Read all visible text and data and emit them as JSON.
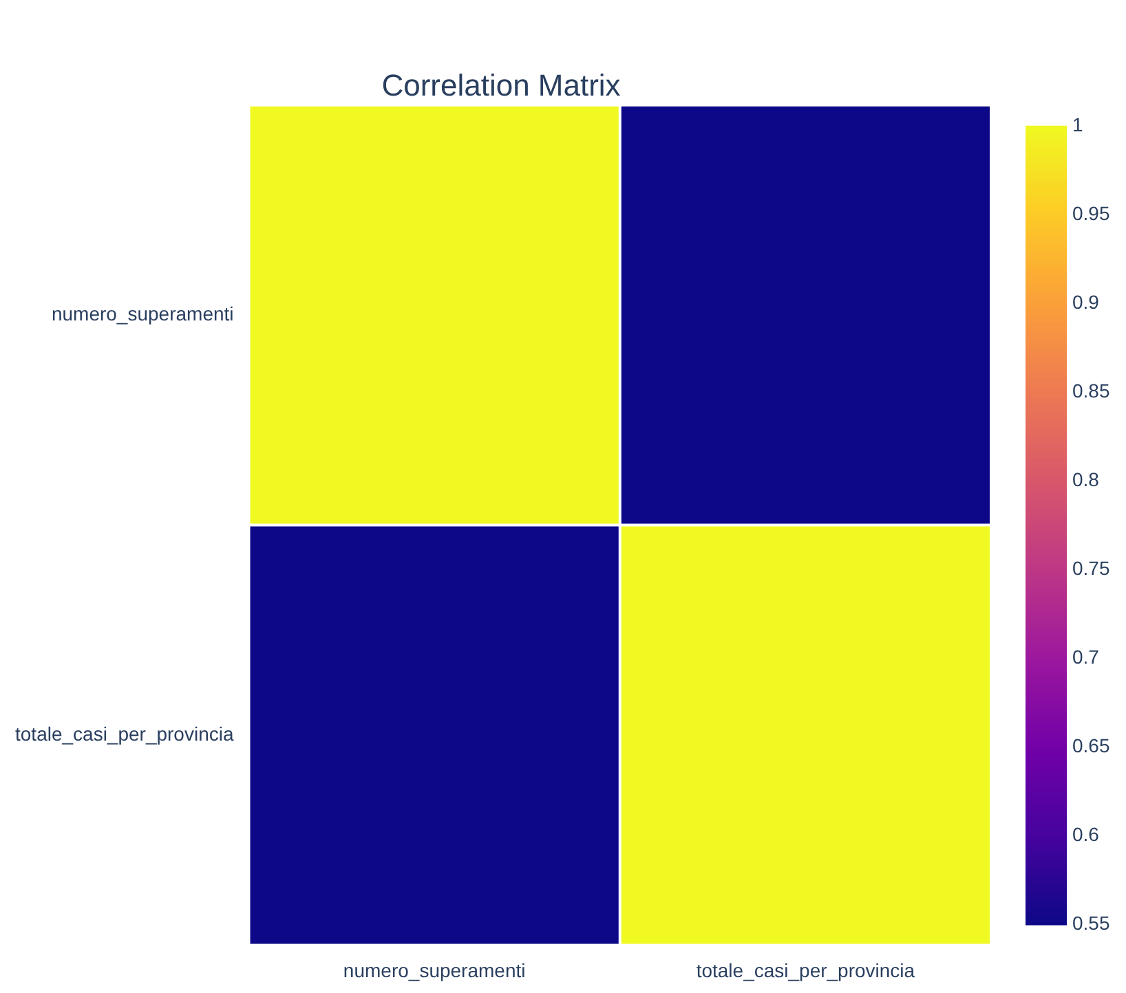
{
  "chart_data": {
    "type": "heatmap",
    "title": "Correlation Matrix",
    "categories": [
      "numero_superamenti",
      "totale_casi_per_provincia"
    ],
    "y_categories": [
      "numero_superamenti",
      "totale_casi_per_provincia"
    ],
    "cells": [
      [
        1,
        0.55
      ],
      [
        0.55,
        1
      ]
    ],
    "clim": [
      0.55,
      1
    ],
    "cticks": [
      0.55,
      0.6,
      0.65,
      0.7,
      0.75,
      0.8,
      0.85,
      0.9,
      0.95,
      1
    ]
  }
}
